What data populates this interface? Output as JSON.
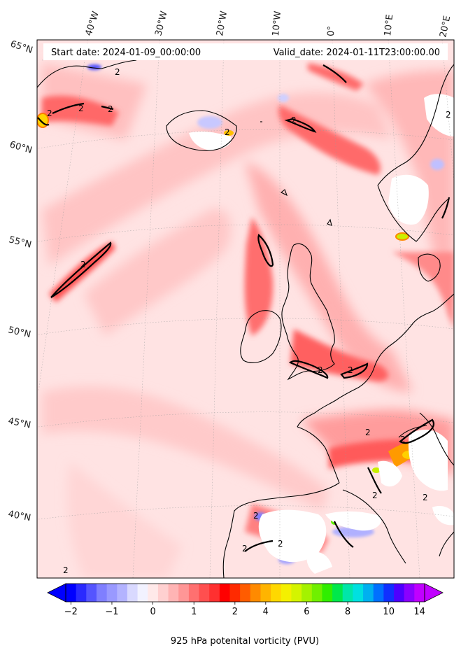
{
  "header": {
    "start_date": "Start date: 2024-01-09_00:00:00",
    "valid_date": "Valid_date: 2024-01-11T23:00:00.00"
  },
  "longitude_labels": [
    "40°W",
    "30°W",
    "20°W",
    "10°W",
    "0°",
    "10°E",
    "20°E"
  ],
  "latitude_labels": [
    "65°N",
    "60°N",
    "55°N",
    "50°N",
    "45°N",
    "40°N"
  ],
  "contour_labels": [
    "2",
    "2",
    "2",
    "2",
    "2",
    "2",
    "2",
    "2",
    "2",
    "2",
    "2",
    "2",
    "2",
    "2",
    "2",
    "2",
    "2",
    "2"
  ],
  "colorbar": {
    "label": "925 hPa potenital vorticity (PVU)",
    "ticks": [
      "−2",
      "−1",
      "0",
      "1",
      "2",
      "4",
      "6",
      "8",
      "10",
      "14"
    ],
    "colors": [
      "#0000ff",
      "#2a2aff",
      "#5555ff",
      "#7f7fff",
      "#9999ff",
      "#b3b3ff",
      "#d9d9ff",
      "#f2f2ff",
      "#ffe9e9",
      "#ffd0d0",
      "#ffb4b4",
      "#ff9696",
      "#ff7070",
      "#ff4f4f",
      "#ff3030",
      "#ff0000",
      "#ff2a00",
      "#ff5c00",
      "#ff8a00",
      "#ffb400",
      "#ffd800",
      "#f4f000",
      "#d4f400",
      "#a4f200",
      "#70f000",
      "#30ee00",
      "#00e84a",
      "#00e6a8",
      "#00e0e0",
      "#00b0f0",
      "#0070ff",
      "#1030ff",
      "#4d00ff",
      "#8a00ff",
      "#c000ff"
    ]
  },
  "colors": {
    "background_low": "#ffe4e4",
    "land_line": "#000000"
  }
}
